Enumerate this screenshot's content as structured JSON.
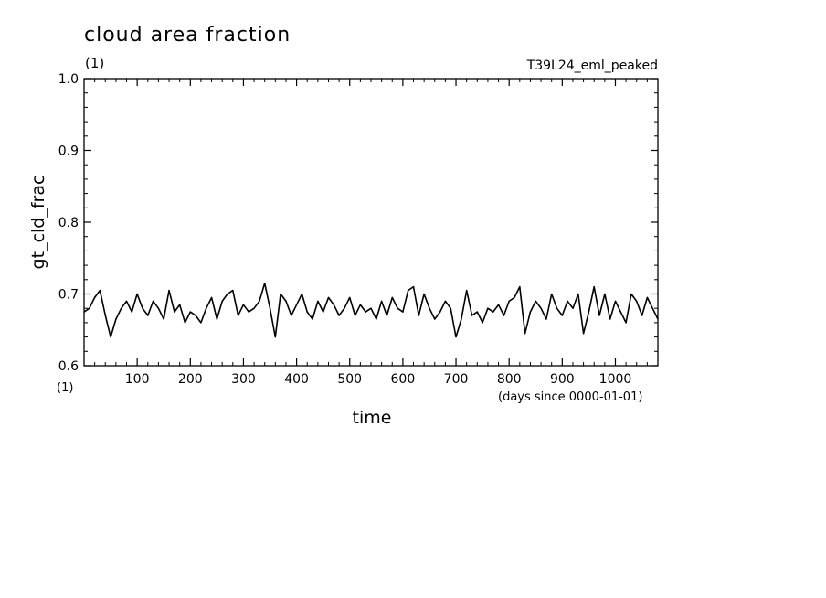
{
  "header": {
    "title": "cloud area fraction",
    "units": "(1)",
    "run_label": "T39L24_eml_peaked"
  },
  "chart_data": {
    "type": "line",
    "title": "cloud area fraction",
    "xlabel": "time",
    "xlabel_units": "(days since 0000-01-01)",
    "ylabel": "gt_cld_frac",
    "ylabel_units": "(1)",
    "xlim": [
      0,
      1080
    ],
    "ylim": [
      0.6,
      1.0
    ],
    "x_major_ticks": [
      100,
      200,
      300,
      400,
      500,
      600,
      700,
      800,
      900,
      1000
    ],
    "x_tick_labels": [
      "100",
      "200",
      "300",
      "400",
      "500",
      "600",
      "700",
      "800",
      "900",
      "1000"
    ],
    "y_major_ticks": [
      0.6,
      0.7,
      0.8,
      0.9,
      1.0
    ],
    "y_tick_labels": [
      "0.6",
      "0.7",
      "0.8",
      "0.9",
      "1.0"
    ],
    "grid": false,
    "line_color": "#000000",
    "series": [
      {
        "x": [
          0,
          10,
          20,
          30,
          40,
          50,
          60,
          70,
          80,
          90,
          100,
          110,
          120,
          130,
          140,
          150,
          160,
          170,
          180,
          190,
          200,
          210,
          220,
          230,
          240,
          250,
          260,
          270,
          280,
          290,
          300,
          310,
          320,
          330,
          340,
          350,
          360,
          370,
          380,
          390,
          400,
          410,
          420,
          430,
          440,
          450,
          460,
          470,
          480,
          490,
          500,
          510,
          520,
          530,
          540,
          550,
          560,
          570,
          580,
          590,
          600,
          610,
          620,
          630,
          640,
          650,
          660,
          670,
          680,
          690,
          700,
          710,
          720,
          730,
          740,
          750,
          760,
          770,
          780,
          790,
          800,
          810,
          820,
          830,
          840,
          850,
          860,
          870,
          880,
          890,
          900,
          910,
          920,
          930,
          940,
          950,
          960,
          970,
          980,
          990,
          1000,
          1010,
          1020,
          1030,
          1040,
          1050,
          1060,
          1070,
          1080
        ],
        "values": [
          0.675,
          0.68,
          0.695,
          0.705,
          0.67,
          0.64,
          0.665,
          0.68,
          0.69,
          0.675,
          0.7,
          0.68,
          0.67,
          0.69,
          0.68,
          0.665,
          0.705,
          0.675,
          0.685,
          0.66,
          0.675,
          0.67,
          0.66,
          0.68,
          0.695,
          0.665,
          0.69,
          0.7,
          0.705,
          0.67,
          0.685,
          0.675,
          0.68,
          0.69,
          0.715,
          0.68,
          0.64,
          0.7,
          0.69,
          0.67,
          0.685,
          0.7,
          0.675,
          0.665,
          0.69,
          0.675,
          0.695,
          0.685,
          0.67,
          0.68,
          0.695,
          0.67,
          0.685,
          0.675,
          0.68,
          0.665,
          0.69,
          0.67,
          0.695,
          0.68,
          0.675,
          0.705,
          0.71,
          0.67,
          0.7,
          0.68,
          0.665,
          0.675,
          0.69,
          0.68,
          0.64,
          0.665,
          0.705,
          0.67,
          0.675,
          0.66,
          0.68,
          0.675,
          0.685,
          0.67,
          0.69,
          0.695,
          0.71,
          0.645,
          0.675,
          0.69,
          0.68,
          0.665,
          0.7,
          0.68,
          0.67,
          0.69,
          0.68,
          0.7,
          0.645,
          0.675,
          0.71,
          0.67,
          0.7,
          0.665,
          0.69,
          0.675,
          0.66,
          0.7,
          0.69,
          0.67,
          0.695,
          0.68,
          0.665
        ]
      }
    ]
  }
}
